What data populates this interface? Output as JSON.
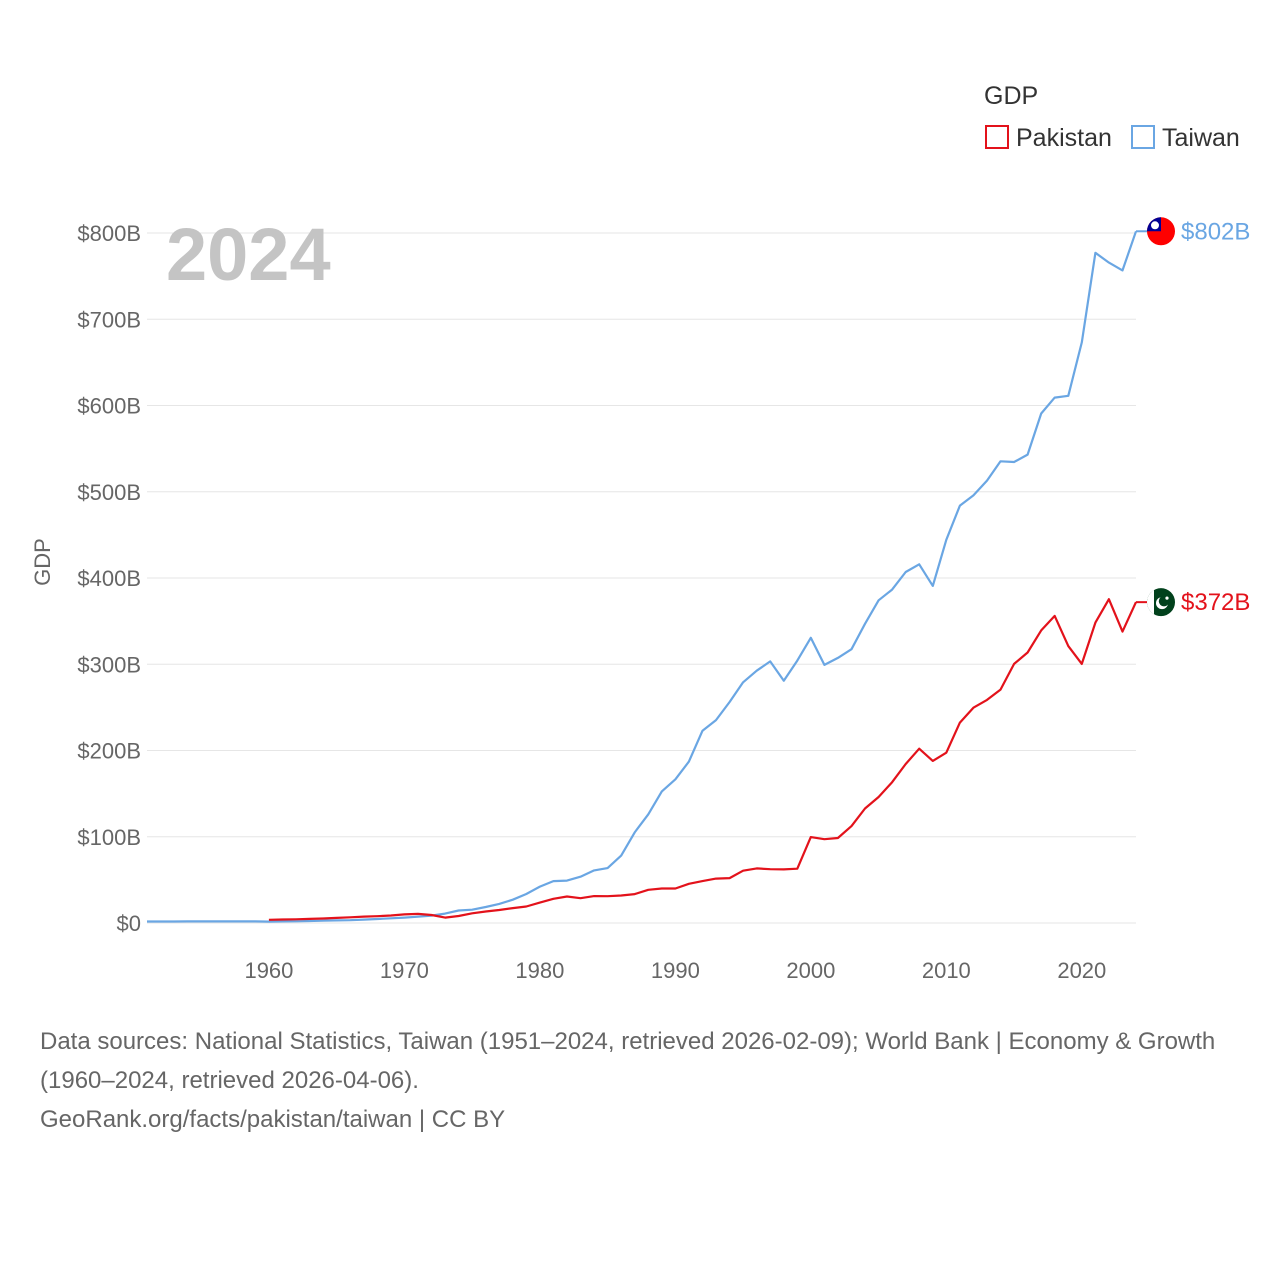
{
  "chart_data": {
    "type": "line",
    "year_label": "2024",
    "ylabel": "GDP",
    "legend_title": "GDP",
    "legend_placement": "top-right",
    "ylim": [
      0,
      800
    ],
    "xlim": [
      1951,
      2024
    ],
    "y_ticks": [
      {
        "value": 0,
        "label": "$0"
      },
      {
        "value": 100,
        "label": "$100B"
      },
      {
        "value": 200,
        "label": "$200B"
      },
      {
        "value": 300,
        "label": "$300B"
      },
      {
        "value": 400,
        "label": "$400B"
      },
      {
        "value": 500,
        "label": "$500B"
      },
      {
        "value": 600,
        "label": "$600B"
      },
      {
        "value": 700,
        "label": "$700B"
      },
      {
        "value": 800,
        "label": "$800B"
      }
    ],
    "x_ticks": [
      {
        "value": 1960,
        "label": "1960"
      },
      {
        "value": 1970,
        "label": "1970"
      },
      {
        "value": 1980,
        "label": "1980"
      },
      {
        "value": 1990,
        "label": "1990"
      },
      {
        "value": 2000,
        "label": "2000"
      },
      {
        "value": 2010,
        "label": "2010"
      },
      {
        "value": 2020,
        "label": "2020"
      }
    ],
    "series": [
      {
        "name": "Pakistan",
        "color": "#e3121b",
        "end_label": "$372B",
        "flag_icon": "pakistan-flag-icon",
        "start_year": 1960,
        "values": [
          3.7,
          4.1,
          4.3,
          4.7,
          5.2,
          5.9,
          6.6,
          7.4,
          7.9,
          8.7,
          10.0,
          10.6,
          9.3,
          6.3,
          8.1,
          11.3,
          13.3,
          15.1,
          17.3,
          19.1,
          23.7,
          28.1,
          30.7,
          28.7,
          31.2,
          31.1,
          31.9,
          33.5,
          38.5,
          40.0,
          40.0,
          45.5,
          48.6,
          51.5,
          52.0,
          60.6,
          63.3,
          62.4,
          62.2,
          62.9,
          99.6,
          97.2,
          98.5,
          112.4,
          132.8,
          146.1,
          163.2,
          184.4,
          202.1,
          187.9,
          197.5,
          232.3,
          249.6,
          258.7,
          270.6,
          300.4,
          313.6,
          339.3,
          356.1,
          321.0,
          300.4,
          348.3,
          375.4,
          337.9,
          372.0
        ]
      },
      {
        "name": "Taiwan",
        "color": "#6aa6e3",
        "end_label": "$802B",
        "flag_icon": "taiwan-flag-icon",
        "start_year": 1951,
        "values": [
          1.7,
          1.7,
          1.7,
          1.8,
          1.9,
          1.8,
          1.8,
          1.9,
          1.9,
          1.6,
          1.8,
          2.0,
          2.3,
          2.7,
          3.0,
          3.3,
          3.9,
          4.6,
          5.4,
          6.3,
          7.3,
          8.6,
          10.9,
          14.5,
          15.4,
          18.6,
          22.2,
          27.0,
          33.6,
          42.2,
          48.6,
          49.2,
          53.7,
          61.0,
          63.6,
          78.2,
          105.0,
          126.0,
          152.6,
          166.6,
          187.1,
          222.9,
          235.3,
          256.2,
          279.1,
          292.5,
          303.3,
          280.9,
          304.2,
          330.7,
          299.3,
          307.4,
          317.4,
          346.9,
          374.1,
          386.5,
          406.9,
          415.9,
          390.8,
          444.3,
          483.9,
          495.8,
          512.9,
          535.3,
          534.5,
          543.1,
          590.7,
          609.2,
          611.3,
          673.2,
          777.1,
          765.7,
          756.6,
          802.0
        ]
      }
    ],
    "title": "",
    "xlabel": "",
    "grid": true
  },
  "footer": {
    "sources": "Data sources: National Statistics, Taiwan (1951–2024, retrieved 2026-02-09); World Bank | Economy & Growth (1960–2024, retrieved 2026-04-06).",
    "credit": "GeoRank.org/facts/pakistan/taiwan | CC BY"
  }
}
